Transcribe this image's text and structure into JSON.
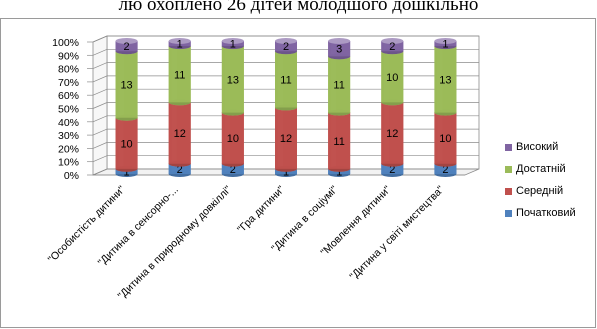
{
  "caption": "лю охоплено 26 дітей молодшого дошкільно",
  "colors": {
    "Початковий": "#4f81bd",
    "Середній": "#c0504d",
    "Достатній": "#9bbb59",
    "Високий": "#8064a2"
  },
  "chart_data": {
    "type": "bar",
    "stacked": "percent",
    "three_d": true,
    "categories": [
      "\"Особистість дитини\"",
      "\"Дитина в сенсорно-...",
      "\"Дитина в природному довкіллі\"",
      "\"Гра дитини\"",
      "\"Дитина в соціумі\"",
      "\"Мовлення дитини\"",
      "\"Дитина у світі мистецтва\""
    ],
    "series": [
      {
        "name": "Початковий",
        "values": [
          1,
          2,
          2,
          1,
          1,
          2,
          2
        ]
      },
      {
        "name": "Середній",
        "values": [
          10,
          12,
          10,
          12,
          11,
          12,
          10
        ]
      },
      {
        "name": "Достатній",
        "values": [
          13,
          11,
          13,
          11,
          11,
          10,
          13
        ]
      },
      {
        "name": "Високий",
        "values": [
          2,
          1,
          1,
          2,
          3,
          2,
          1
        ]
      }
    ],
    "ylim": [
      0,
      100
    ],
    "yticks": [
      "0%",
      "10%",
      "20%",
      "30%",
      "40%",
      "50%",
      "60%",
      "70%",
      "80%",
      "90%",
      "100%"
    ],
    "grid": true,
    "legend_position": "right",
    "legend_order": [
      "Високий",
      "Достатній",
      "Середній",
      "Початковий"
    ]
  }
}
